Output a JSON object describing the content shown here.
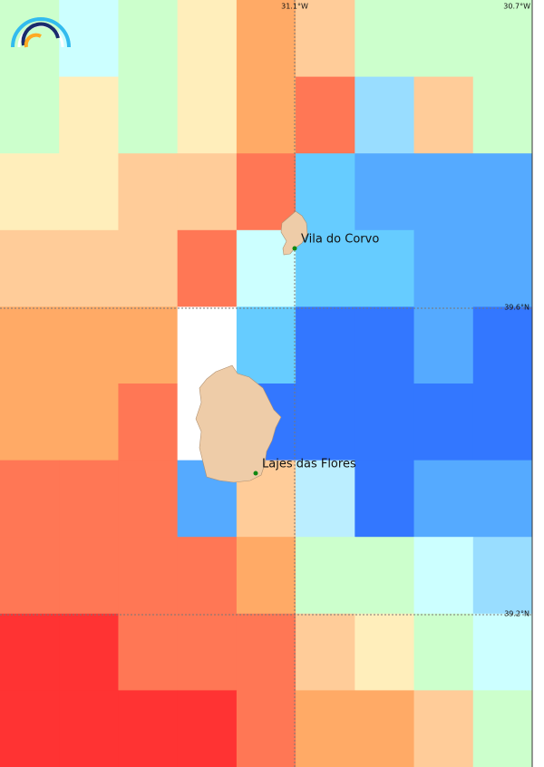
{
  "map": {
    "longitude_labels": [
      "31.1°W",
      "30.7°W"
    ],
    "latitude_labels": [
      "39.6°N",
      "39.2°N"
    ],
    "places": [
      "Vila do Corvo",
      "Lajes das Flores"
    ],
    "cells": [
      [
        "#ccffcc",
        "#ccffff",
        "#ccffcc",
        "#ffeebb",
        "#ffaa66",
        "#ffcc99",
        "#ccffcc",
        "#ccffcc",
        "#ccffcc"
      ],
      [
        "#ccffcc",
        "#ffeebb",
        "#ccffcc",
        "#ffeebb",
        "#ffaa66",
        "#ff7755",
        "#99ddff",
        "#ffcc99",
        "#ccffcc"
      ],
      [
        "#ffeebb",
        "#ffeebb",
        "#ffcc99",
        "#ffcc99",
        "#ff7755",
        "#66ccff",
        "#55aaff",
        "#55aaff",
        "#55aaff"
      ],
      [
        "#ffcc99",
        "#ffcc99",
        "#ffcc99",
        "#ff7755",
        "#ccffff",
        "#66ccff",
        "#66ccff",
        "#55aaff",
        "#55aaff"
      ],
      [
        "#ffaa66",
        "#ffaa66",
        "#ffaa66",
        "#ffffff",
        "#66ccff",
        "#3377ff",
        "#3377ff",
        "#55aaff",
        "#3377ff"
      ],
      [
        "#ffaa66",
        "#ffaa66",
        "#ff7755",
        "#ffffff",
        "#3377ff",
        "#3377ff",
        "#3377ff",
        "#3377ff",
        "#3377ff"
      ],
      [
        "#ff7755",
        "#ff7755",
        "#ff7755",
        "#55aaff",
        "#ffcc99",
        "#bbeeff",
        "#3377ff",
        "#55aaff",
        "#55aaff"
      ],
      [
        "#ff7755",
        "#ff7755",
        "#ff7755",
        "#ff7755",
        "#ffaa66",
        "#ccffcc",
        "#ccffcc",
        "#ccffff",
        "#99ddff"
      ],
      [
        "#ff3333",
        "#ff3333",
        "#ff7755",
        "#ff7755",
        "#ff7755",
        "#ffcc99",
        "#ffeebb",
        "#ccffcc",
        "#ccffff"
      ],
      [
        "#ff3333",
        "#ff3333",
        "#ff3333",
        "#ff3333",
        "#ff7755",
        "#ffaa66",
        "#ffaa66",
        "#ffcc99",
        "#ccffcc"
      ]
    ]
  }
}
